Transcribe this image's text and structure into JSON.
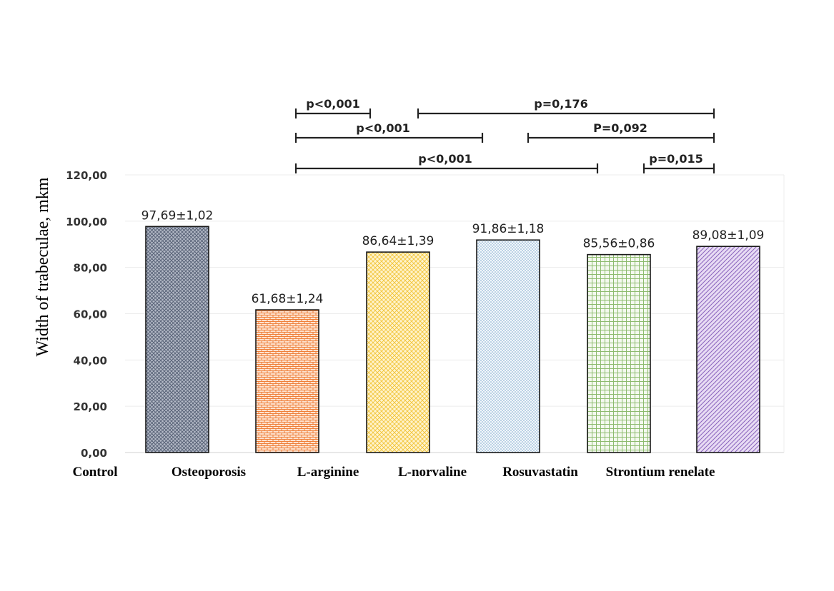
{
  "chart_data": {
    "type": "bar",
    "ylabel": "Width of trabeculae, mkm",
    "ylim": [
      0,
      120
    ],
    "yticks": [
      "0,00",
      "20,00",
      "40,00",
      "60,00",
      "80,00",
      "100,00",
      "120,00"
    ],
    "grid": true,
    "categories": [
      "Control",
      "Osteoporosis",
      "L-arginine",
      "L-norvaline",
      "Rosuvastatin",
      "Strontium renelate"
    ],
    "values": [
      97.69,
      61.68,
      86.64,
      91.86,
      85.56,
      89.08
    ],
    "data_labels": [
      "97,69±1,02",
      "61,68±1,24",
      "86,64±1,39",
      "91,86±1,18",
      "85,56±0,86",
      "89,08±1,09"
    ],
    "bar_colors": [
      "#8a93a6",
      "#f2955a",
      "#f7d36b",
      "#a9c8e0",
      "#b7d6a2",
      "#a184c9"
    ],
    "significance": [
      {
        "label": "p<0,001",
        "from": 1,
        "to": 2
      },
      {
        "label": "p=0,176",
        "from": 3,
        "to": 5
      },
      {
        "label": "p<0,001",
        "from": 1,
        "to": 3
      },
      {
        "label": "P=0,092",
        "from": 4,
        "to": 5
      },
      {
        "label": "p<0,001",
        "from": 1,
        "to": 4
      },
      {
        "label": "p=0,015",
        "from": 4,
        "to": 5
      }
    ]
  }
}
